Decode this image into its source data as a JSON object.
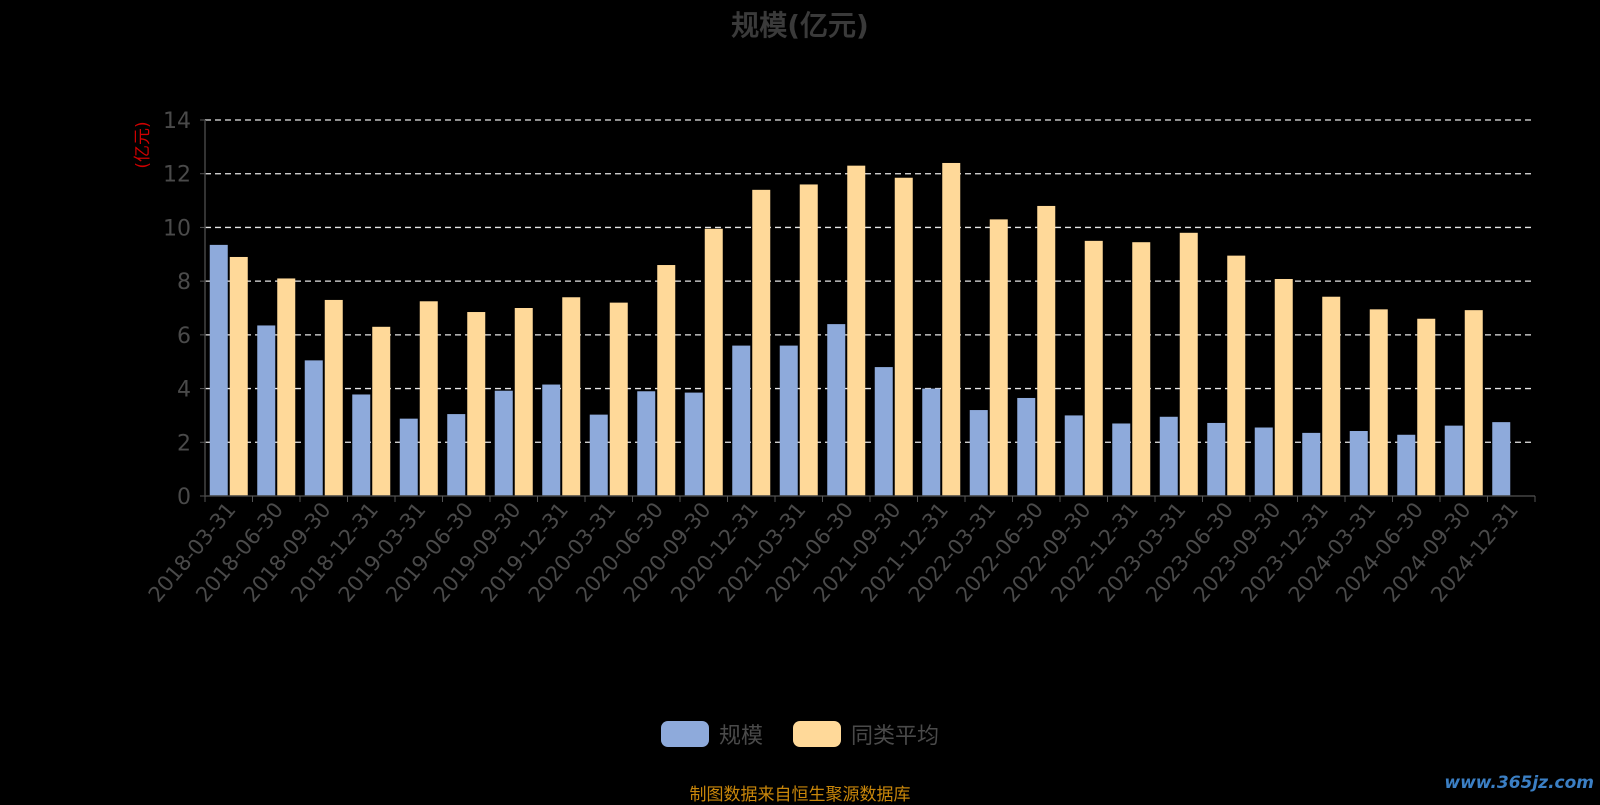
{
  "chart_data": {
    "type": "bar",
    "title": "规模(亿元)",
    "ylabel": "(亿元)",
    "ylim": [
      0,
      14
    ],
    "yticks": [
      0,
      2,
      4,
      6,
      8,
      10,
      12,
      14
    ],
    "grid": true,
    "legend_position": "bottom",
    "categories": [
      "2018-03-31",
      "2018-06-30",
      "2018-09-30",
      "2018-12-31",
      "2019-03-31",
      "2019-06-30",
      "2019-09-30",
      "2019-12-31",
      "2020-03-31",
      "2020-06-30",
      "2020-09-30",
      "2020-12-31",
      "2021-03-31",
      "2021-06-30",
      "2021-09-30",
      "2021-12-31",
      "2022-03-31",
      "2022-06-30",
      "2022-09-30",
      "2022-12-31",
      "2023-03-31",
      "2023-06-30",
      "2023-09-30",
      "2023-12-31",
      "2024-03-31",
      "2024-06-30",
      "2024-09-30",
      "2024-12-31"
    ],
    "series": [
      {
        "name": "规模",
        "color": "#8eaadb",
        "values": [
          9.35,
          6.35,
          5.05,
          3.78,
          2.88,
          3.05,
          3.92,
          4.15,
          3.03,
          3.9,
          3.85,
          5.6,
          5.6,
          6.4,
          4.8,
          4.0,
          3.2,
          3.65,
          3.0,
          2.7,
          2.95,
          2.72,
          2.55,
          2.35,
          2.42,
          2.28,
          2.62,
          2.75
        ]
      },
      {
        "name": "同类平均",
        "color": "#ffd999",
        "values": [
          8.9,
          8.1,
          7.3,
          6.3,
          7.25,
          6.85,
          7.0,
          7.4,
          7.2,
          8.6,
          9.95,
          11.4,
          11.6,
          12.3,
          11.85,
          12.4,
          10.3,
          10.8,
          9.5,
          9.45,
          9.8,
          8.95,
          8.08,
          7.42,
          6.95,
          6.6,
          6.92,
          null
        ]
      }
    ]
  },
  "footer": {
    "source": "制图数据来自恒生聚源数据库",
    "watermark": "www.365jz.com"
  }
}
